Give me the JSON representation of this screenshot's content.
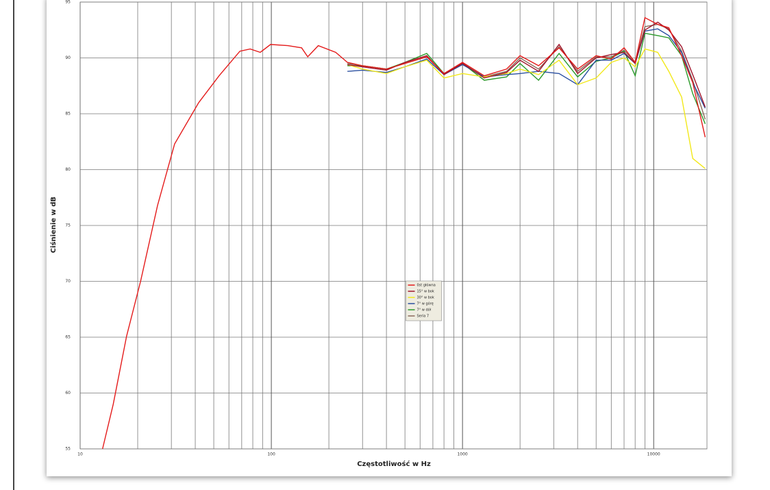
{
  "chart_data": {
    "type": "line",
    "x_label": "Częstotliwość w Hz",
    "y_label": "Ciśnienie w dB",
    "xscale": "log",
    "xlim": [
      10,
      19000
    ],
    "xticks": [
      10,
      100,
      1000,
      10000
    ],
    "ylim": [
      55,
      95
    ],
    "yticks": [
      55,
      60,
      65,
      70,
      75,
      80,
      85,
      90,
      95
    ],
    "grid": true,
    "legend": "center",
    "series": [
      {
        "name": "0st główna",
        "color": "#e41a1a",
        "x": [
          13.1,
          14.9,
          17.5,
          20.7,
          25.4,
          31.2,
          41.7,
          53.3,
          68.5,
          77.5,
          87.5,
          99,
          122,
          144,
          155,
          176,
          217,
          250,
          300,
          400,
          500,
          650,
          800,
          1000,
          1300,
          1700,
          2000,
          2500,
          3200,
          4000,
          5000,
          6000,
          7000,
          8000,
          9000,
          10500,
          12000,
          14000,
          16000,
          18600
        ],
        "values": [
          55,
          59,
          65.1,
          70,
          76.8,
          82.3,
          86,
          88.4,
          90.6,
          90.8,
          90.5,
          91.2,
          91.1,
          90.9,
          90.1,
          91.1,
          90.5,
          89.6,
          89.3,
          89,
          89.5,
          90.1,
          88.6,
          89.6,
          88.4,
          89.0,
          90.2,
          89.3,
          90.9,
          89,
          90.2,
          89.9,
          90.9,
          89.6,
          93.6,
          93,
          92.7,
          90.2,
          87.8,
          82.9
        ]
      },
      {
        "name": "15° w bok",
        "color": "#a0142a",
        "x": [
          250,
          300,
          400,
          500,
          650,
          800,
          1000,
          1300,
          1700,
          2000,
          2500,
          3200,
          4000,
          5000,
          6000,
          7000,
          8000,
          9000,
          10500,
          12000,
          14000,
          16000,
          18600
        ],
        "values": [
          89.4,
          89.2,
          88.9,
          89.6,
          90.2,
          88.5,
          89.5,
          88.2,
          88.7,
          89.8,
          88.8,
          91.2,
          88.6,
          90.0,
          90.3,
          90.5,
          89.5,
          92.5,
          93.2,
          92.5,
          91,
          88.5,
          85.6
        ]
      },
      {
        "name": "30° w bok",
        "color": "#f2e81a",
        "x": [
          250,
          300,
          400,
          500,
          650,
          800,
          1000,
          1300,
          1700,
          2000,
          2500,
          3200,
          4000,
          5000,
          6000,
          7000,
          8000,
          9000,
          10500,
          12000,
          14000,
          16000,
          18600
        ],
        "values": [
          89.4,
          89.0,
          88.6,
          89.2,
          89.8,
          88.2,
          88.6,
          88.3,
          88.6,
          89.0,
          88.5,
          89.8,
          87.6,
          88.2,
          89.6,
          90.0,
          89.2,
          90.8,
          90.5,
          88.8,
          86.5,
          81,
          80.1
        ]
      },
      {
        "name": "7° w górę",
        "color": "#2a4fa0",
        "x": [
          250,
          300,
          400,
          500,
          650,
          800,
          1000,
          1300,
          1700,
          2000,
          2500,
          3200,
          4000,
          5000,
          6000,
          7000,
          8000,
          9000,
          10500,
          12000,
          14000,
          16000,
          18600
        ],
        "values": [
          88.8,
          88.9,
          88.7,
          89.2,
          89.9,
          88.5,
          89.4,
          88.3,
          88.5,
          88.6,
          88.8,
          88.6,
          87.6,
          89.8,
          89.8,
          90.4,
          89.5,
          92.4,
          92.6,
          92,
          90.5,
          87.8,
          85.5
        ]
      },
      {
        "name": "7° w dół",
        "color": "#2a9a2a",
        "x": [
          250,
          300,
          400,
          500,
          650,
          800,
          1000,
          1300,
          1700,
          2000,
          2500,
          3200,
          4000,
          5000,
          6000,
          7000,
          8000,
          9000,
          10500,
          12000,
          14000,
          16000,
          18600
        ],
        "values": [
          89.3,
          89.3,
          89.0,
          89.6,
          90.4,
          88.6,
          89.5,
          88.0,
          88.3,
          89.5,
          88,
          90.4,
          88.3,
          89.7,
          90,
          90.6,
          88.4,
          92.2,
          92,
          91.8,
          90.2,
          86.8,
          84.1
        ]
      },
      {
        "name": "Seria 7",
        "color": "#8a6a5a",
        "x": [
          250,
          300,
          400,
          500,
          650,
          800,
          1000,
          1300,
          1700,
          2000,
          2500,
          3200,
          4000,
          5000,
          6000,
          7000,
          8000,
          9000,
          10500,
          12000,
          14000,
          16000,
          18600
        ],
        "values": [
          89.5,
          89.3,
          89.0,
          89.5,
          90.1,
          88.6,
          89.5,
          88.3,
          88.8,
          90.0,
          89.0,
          91.0,
          88.8,
          90.1,
          90.1,
          90.7,
          89.6,
          92.8,
          93.0,
          92.6,
          90.6,
          88.0,
          84.5
        ]
      }
    ]
  }
}
